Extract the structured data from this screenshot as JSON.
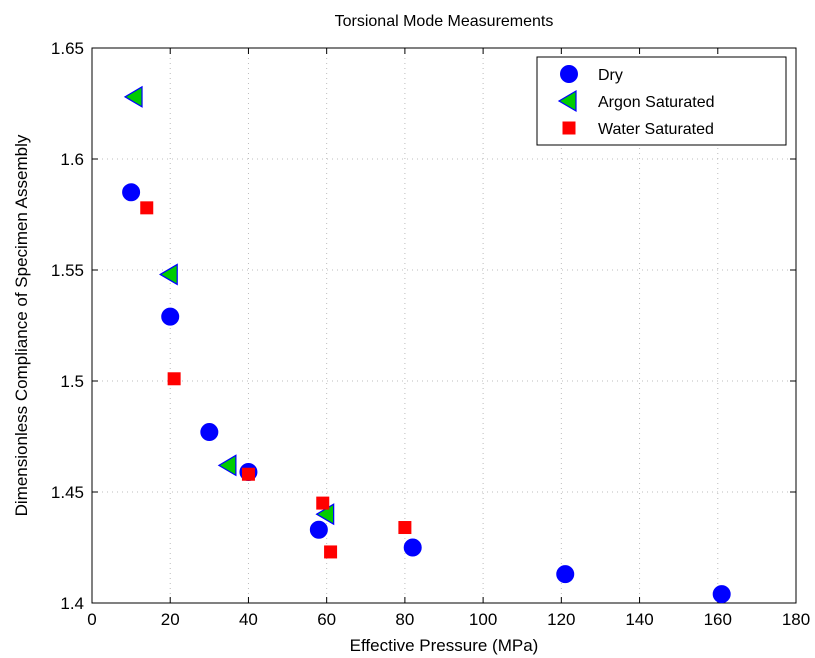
{
  "chart_data": {
    "type": "scatter",
    "title": "Torsional Mode Measurements",
    "xlabel": "Effective Pressure (MPa)",
    "ylabel": "Dimensionless Compliance of Specimen Assembly",
    "xlim": [
      0,
      180
    ],
    "ylim": [
      1.4,
      1.65
    ],
    "xticks": [
      0,
      20,
      40,
      60,
      80,
      100,
      120,
      140,
      160,
      180
    ],
    "yticks": [
      1.4,
      1.45,
      1.5,
      1.55,
      1.6,
      1.65
    ],
    "xtick_labels": [
      "0",
      "20",
      "40",
      "60",
      "80",
      "100",
      "120",
      "140",
      "160",
      "180"
    ],
    "ytick_labels": [
      "1.4",
      "1.45",
      "1.5",
      "1.55",
      "1.6",
      "1.65"
    ],
    "grid": true,
    "legend_position": "top-right",
    "series": [
      {
        "name": "Dry",
        "marker": "circle",
        "color": "#0000ff",
        "points": [
          [
            10,
            1.585
          ],
          [
            20,
            1.529
          ],
          [
            30,
            1.477
          ],
          [
            40,
            1.459
          ],
          [
            58,
            1.433
          ],
          [
            82,
            1.425
          ],
          [
            121,
            1.413
          ],
          [
            161,
            1.404
          ]
        ]
      },
      {
        "name": "Argon Saturated",
        "marker": "triangle-left",
        "color": "#00cc00",
        "edge_color": "#0000ff",
        "points": [
          [
            11,
            1.628
          ],
          [
            20,
            1.548
          ],
          [
            35,
            1.462
          ],
          [
            60,
            1.44
          ]
        ]
      },
      {
        "name": "Water Saturated",
        "marker": "square",
        "color": "#ff0000",
        "points": [
          [
            14,
            1.578
          ],
          [
            21,
            1.501
          ],
          [
            40,
            1.458
          ],
          [
            59,
            1.445
          ],
          [
            61,
            1.423
          ],
          [
            80,
            1.434
          ]
        ]
      }
    ]
  }
}
